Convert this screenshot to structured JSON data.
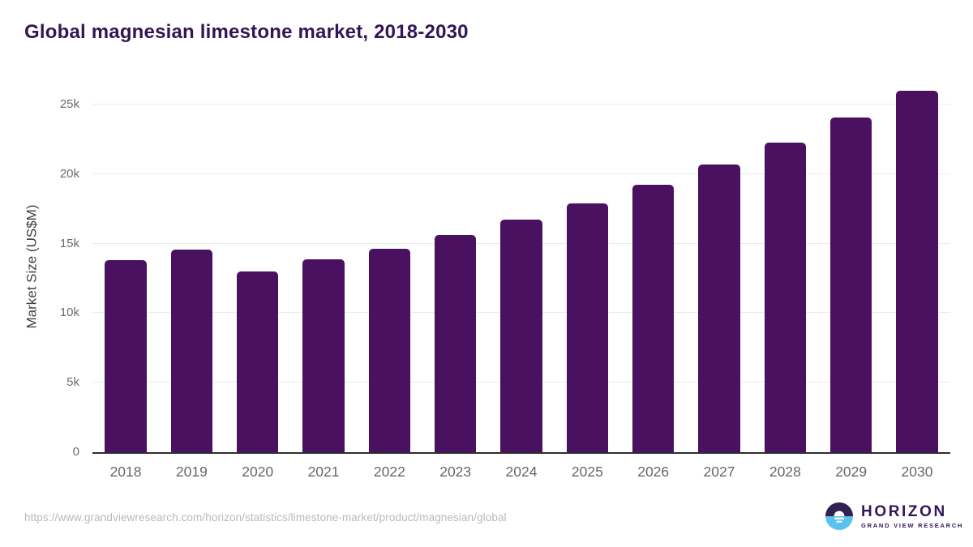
{
  "title": "Global magnesian limestone market, 2018-2030",
  "chart_data": {
    "type": "bar",
    "title": "Global magnesian limestone market, 2018-2030",
    "categories": [
      "2018",
      "2019",
      "2020",
      "2021",
      "2022",
      "2023",
      "2024",
      "2025",
      "2026",
      "2027",
      "2028",
      "2029",
      "2030"
    ],
    "values": [
      13800,
      14600,
      13000,
      13900,
      14650,
      15650,
      16750,
      17900,
      19250,
      20700,
      22250,
      24100,
      26000
    ],
    "xlabel": "",
    "ylabel": "Market Size (US$M)",
    "ylim": [
      0,
      26700
    ],
    "yticks": [
      {
        "value": 0,
        "label": "0"
      },
      {
        "value": 5000,
        "label": "5k"
      },
      {
        "value": 10000,
        "label": "10k"
      },
      {
        "value": 15000,
        "label": "15k"
      },
      {
        "value": 20000,
        "label": "20k"
      },
      {
        "value": 25000,
        "label": "25k"
      }
    ],
    "grid": "horizontal",
    "legend": "none",
    "bar_color": "#4a1161",
    "units": "US$M"
  },
  "colors": {
    "bar": "#4a1161",
    "title_text": "#331454",
    "grid": "#ebebeb",
    "axis_line": "#2e2e2e",
    "tick_text": "#6b6b6b",
    "x_label_text": "#666666",
    "url_text": "#b9b9b9",
    "logo_purple": "#32175a",
    "logo_circle_top": "#342051",
    "logo_circle_bottom": "#5ac2f0"
  },
  "footer": {
    "url": "https://www.grandviewresearch.com/horizon/statistics/limestone-market/product/magnesian/global",
    "logo": {
      "name": "HORIZON",
      "subtitle": "GRAND VIEW RESEARCH"
    }
  }
}
